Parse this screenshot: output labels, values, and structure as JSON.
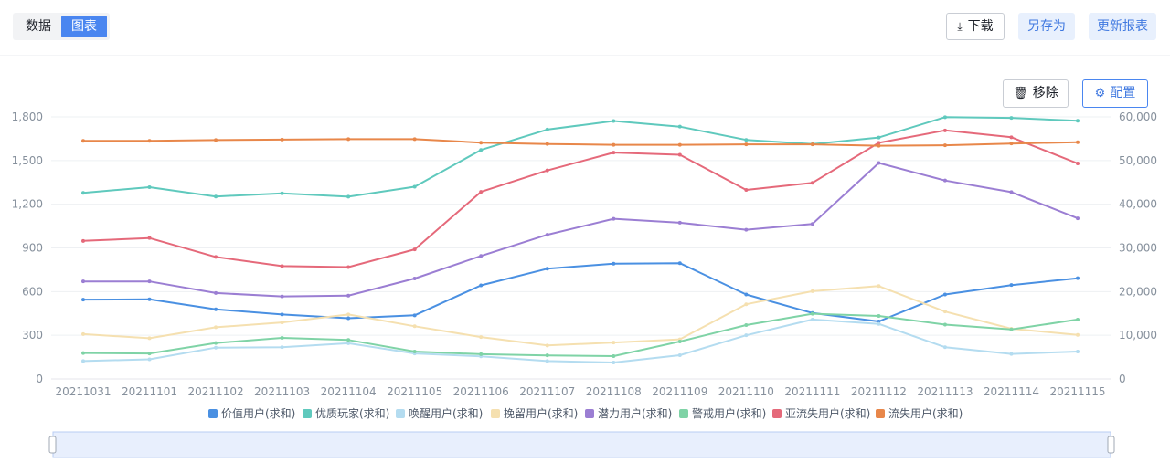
{
  "toolbar": {
    "tabs": [
      {
        "label": "数据",
        "active": false
      },
      {
        "label": "图表",
        "active": true
      }
    ],
    "download_label": "下载",
    "saveas_label": "另存为",
    "update_label": "更新报表",
    "remove_label": "移除",
    "config_label": "配置"
  },
  "chart_data": {
    "type": "line",
    "categories": [
      "20211031",
      "20211101",
      "20211102",
      "20211103",
      "20211104",
      "20211105",
      "20211106",
      "20211107",
      "20211108",
      "20211109",
      "20211110",
      "20211111",
      "20211112",
      "20211113",
      "20211114",
      "20211115"
    ],
    "y_left": {
      "min": 0,
      "max": 1800,
      "ticks": [
        0,
        300,
        600,
        900,
        1200,
        1500,
        1800
      ],
      "tick_labels": [
        "0",
        "300",
        "600",
        "900",
        "1,200",
        "1,500",
        "1,800"
      ]
    },
    "y_right": {
      "min": 0,
      "max": 60000,
      "ticks": [
        0,
        10000,
        20000,
        30000,
        40000,
        50000,
        60000
      ],
      "tick_labels": [
        "0",
        "10,000",
        "20,000",
        "30,000",
        "40,000",
        "50,000",
        "60,000"
      ]
    },
    "grid": true,
    "legend_position": "bottom",
    "series": [
      {
        "name": "价值用户(求和)",
        "color": "#4a90e2",
        "axis": "left",
        "values": [
          545,
          547,
          478,
          443,
          417,
          437,
          643,
          757,
          792,
          795,
          580,
          453,
          395,
          580,
          645,
          692
        ]
      },
      {
        "name": "优质玩家(求和)",
        "color": "#5fc9bd",
        "axis": "left",
        "values": [
          1278,
          1317,
          1253,
          1275,
          1252,
          1320,
          1573,
          1713,
          1772,
          1733,
          1642,
          1613,
          1658,
          1798,
          1793,
          1773
        ]
      },
      {
        "name": "唤醒用户(求和)",
        "color": "#b4dcf0",
        "axis": "left",
        "values": [
          123,
          135,
          215,
          218,
          245,
          175,
          155,
          123,
          113,
          163,
          300,
          408,
          378,
          218,
          172,
          188
        ]
      },
      {
        "name": "挽留用户(求和)",
        "color": "#f5e0b0",
        "axis": "left",
        "values": [
          308,
          280,
          355,
          388,
          443,
          362,
          288,
          230,
          250,
          272,
          513,
          603,
          638,
          463,
          345,
          303
        ]
      },
      {
        "name": "潜力用户(求和)",
        "color": "#9b7ed3",
        "axis": "left",
        "values": [
          670,
          670,
          590,
          567,
          572,
          690,
          845,
          990,
          1100,
          1073,
          1025,
          1065,
          1483,
          1363,
          1283,
          1103
        ]
      },
      {
        "name": "警戒用户(求和)",
        "color": "#7fd3a6",
        "axis": "left",
        "values": [
          178,
          175,
          247,
          282,
          268,
          188,
          170,
          162,
          157,
          257,
          370,
          448,
          433,
          373,
          340,
          408
        ]
      },
      {
        "name": "亚流失用户(求和)",
        "color": "#e5697a",
        "axis": "left",
        "values": [
          948,
          968,
          838,
          775,
          768,
          890,
          1285,
          1432,
          1555,
          1540,
          1298,
          1347,
          1622,
          1707,
          1660,
          1480
        ]
      },
      {
        "name": "流失用户(求和)",
        "color": "#e8874a",
        "axis": "right",
        "values": [
          54500,
          54500,
          54700,
          54800,
          54900,
          54900,
          54100,
          53800,
          53600,
          53600,
          53700,
          53700,
          53400,
          53500,
          53900,
          54200
        ]
      }
    ]
  }
}
